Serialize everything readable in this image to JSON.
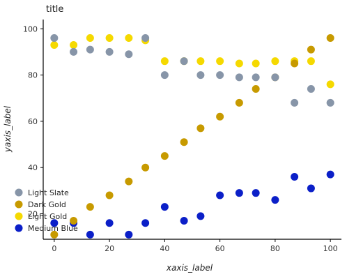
{
  "chart_data": {
    "type": "line",
    "title": "title",
    "xlabel": "xaxis_label",
    "ylabel": "yaxis_label",
    "xlim": [
      -4,
      104
    ],
    "ylim": [
      9,
      104
    ],
    "x_ticks": [
      0,
      20,
      40,
      60,
      80,
      100
    ],
    "y_ticks": [
      20,
      40,
      60,
      80,
      100
    ],
    "grid": false,
    "legend_position": "left",
    "series": [
      {
        "name": "Medium Blue",
        "color": "#0b1fc8",
        "x": [
          0,
          7,
          13,
          20,
          27,
          33,
          40,
          47,
          53,
          60,
          67,
          73,
          80,
          87,
          93,
          100
        ],
        "y": [
          16,
          16,
          11,
          16,
          11,
          16,
          23,
          17,
          19,
          28,
          29,
          29,
          26,
          36,
          31,
          37
        ]
      },
      {
        "name": "Light Gold",
        "color": "#f5d900",
        "x": [
          0,
          7,
          13,
          20,
          27,
          33,
          40,
          47,
          53,
          60,
          67,
          73,
          80,
          87,
          93,
          100
        ],
        "y": [
          93,
          93,
          96,
          96,
          96,
          95,
          86,
          86,
          86,
          86,
          85,
          85,
          86,
          86,
          86,
          76
        ]
      },
      {
        "name": "Dark Gold",
        "color": "#c79a00",
        "x": [
          0,
          7,
          13,
          20,
          27,
          33,
          40,
          47,
          53,
          60,
          67,
          73,
          80,
          87,
          93,
          100
        ],
        "y": [
          11,
          17,
          23,
          28,
          34,
          40,
          45,
          51,
          57,
          62,
          68,
          74,
          79,
          85,
          91,
          96
        ]
      },
      {
        "name": "Light Slate",
        "color": "#8795a8",
        "x": [
          0,
          7,
          13,
          20,
          27,
          33,
          40,
          47,
          53,
          60,
          67,
          73,
          80,
          87,
          93,
          100
        ],
        "y": [
          96,
          90,
          91,
          90,
          89,
          96,
          80,
          86,
          80,
          80,
          79,
          79,
          79,
          68,
          74,
          68
        ]
      }
    ]
  }
}
